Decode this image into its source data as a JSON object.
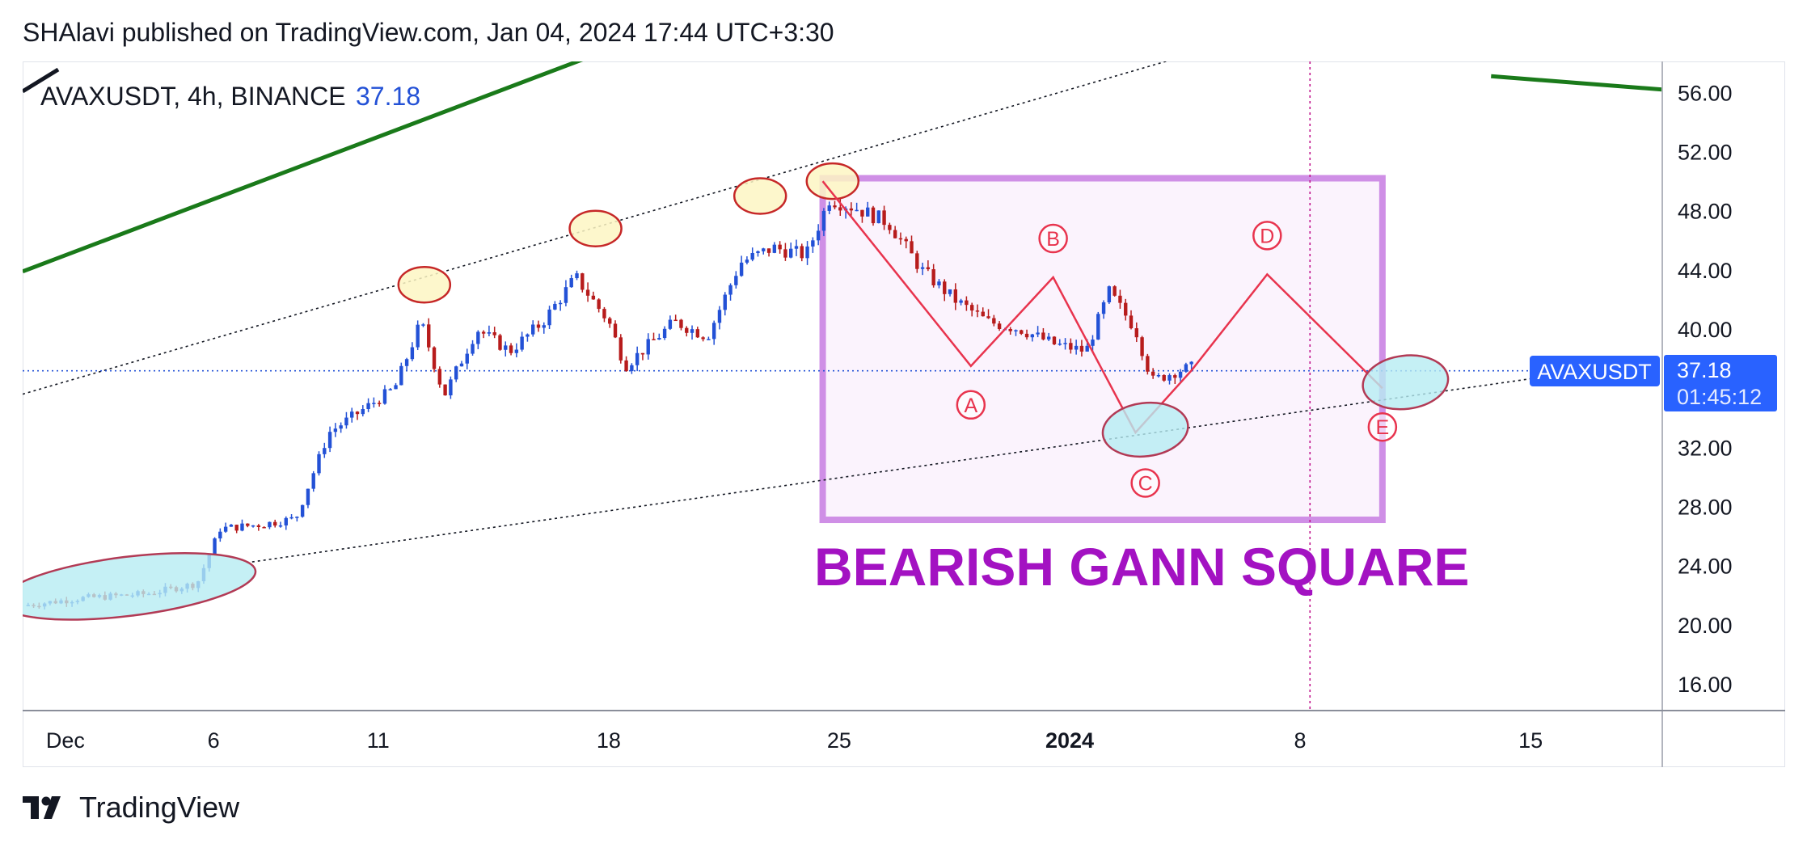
{
  "header": {
    "published": "SHAlavi published on TradingView.com, Jan 04, 2024 17:44 UTC+3:30"
  },
  "legend": {
    "symbol_text": "AVAXUSDT, 4h, BINANCE",
    "last_price": "37.18"
  },
  "price_tag": {
    "symbol": "AVAXUSDT",
    "price": "37.18",
    "countdown": "01:45:12",
    "color": "#2962ff"
  },
  "annotation": {
    "title": "BEARISH GANN SQUARE",
    "color": "#a312c2",
    "wave_labels": [
      "A",
      "B",
      "C",
      "D",
      "E"
    ]
  },
  "footer": {
    "brand": "TradingView"
  },
  "colors": {
    "bull": "#2351d6",
    "bear": "#b71c1c",
    "trend_line": "#1a7a1a",
    "box_border": "#cf8fe6",
    "box_fill": "#fbf3fd",
    "wave_line": "#e8344e",
    "top_marker": "#fdf6c3",
    "zone_marker": "#b7ecf2"
  },
  "chart_data": {
    "type": "candlestick",
    "symbol": "AVAXUSDT",
    "timeframe": "4h",
    "exchange": "BINANCE",
    "y_ticks": [
      56,
      52,
      48,
      44,
      40,
      32,
      28,
      24,
      20,
      16
    ],
    "y_tick_labels": [
      "56.00",
      "52.00",
      "48.00",
      "44.00",
      "40.00",
      "32.00",
      "28.00",
      "24.00",
      "20.00",
      "16.00"
    ],
    "ylim": [
      14.2,
      58.1
    ],
    "x_range_days": [
      0.2,
      50.0
    ],
    "x_ticks": [
      {
        "label": "Dec",
        "day": 1.5,
        "bold": false
      },
      {
        "label": "6",
        "day": 6,
        "bold": false
      },
      {
        "label": "11",
        "day": 11,
        "bold": false
      },
      {
        "label": "18",
        "day": 18,
        "bold": false
      },
      {
        "label": "25",
        "day": 25,
        "bold": false
      },
      {
        "label": "2024",
        "day": 32,
        "bold": true
      },
      {
        "label": "8",
        "day": 39,
        "bold": false
      },
      {
        "label": "15",
        "day": 46,
        "bold": false
      }
    ],
    "current_price": 37.18,
    "price_path": [
      [
        0.2,
        21.3
      ],
      [
        2,
        21.8
      ],
      [
        4,
        22.1
      ],
      [
        5.5,
        22.8
      ],
      [
        6.2,
        26.5
      ],
      [
        7.5,
        26.8
      ],
      [
        8.5,
        27.2
      ],
      [
        9.5,
        33.0
      ],
      [
        10.5,
        34.5
      ],
      [
        11.5,
        36.0
      ],
      [
        12.3,
        40.5
      ],
      [
        13,
        35.5
      ],
      [
        14,
        40.0
      ],
      [
        15,
        38.5
      ],
      [
        16,
        40.5
      ],
      [
        17,
        43.5
      ],
      [
        18,
        40.5
      ],
      [
        18.5,
        37.5
      ],
      [
        20,
        40.5
      ],
      [
        21,
        39.5
      ],
      [
        22,
        44.5
      ],
      [
        23,
        45.5
      ],
      [
        24,
        45.0
      ],
      [
        24.7,
        48.8
      ],
      [
        25.5,
        48.2
      ],
      [
        26.5,
        47.2
      ],
      [
        27.5,
        44.0
      ],
      [
        28.5,
        42.0
      ],
      [
        29.5,
        40.5
      ],
      [
        30.5,
        40.0
      ],
      [
        31.5,
        39.0
      ],
      [
        32.5,
        38.5
      ],
      [
        33.2,
        42.5
      ],
      [
        34,
        40.0
      ],
      [
        34.5,
        36.5
      ],
      [
        35.3,
        37.2
      ],
      [
        35.7,
        37.4
      ]
    ],
    "green_trend_line": {
      "points": [
        [
          0.2,
          43.9
        ],
        [
          18,
          58.9
        ]
      ],
      "second_segment": [
        [
          44.8,
          57.1
        ],
        [
          50,
          56.2
        ]
      ]
    },
    "upper_channel": [
      [
        0.2,
        35.6
      ],
      [
        36,
        58.8
      ]
    ],
    "lower_channel": [
      [
        7,
        24.2
      ],
      [
        46.5,
        36.8
      ]
    ],
    "box": {
      "x0": 24.5,
      "x1": 41.5,
      "y_top": 50.2,
      "y_bottom": 27.1
    },
    "wave_path": [
      {
        "label": "",
        "day": 24.5,
        "price": 50.0
      },
      {
        "label": "A",
        "day": 29,
        "price": 37.5
      },
      {
        "label": "B",
        "day": 31.5,
        "price": 43.5
      },
      {
        "label": "C",
        "day": 34,
        "price": 33.0
      },
      {
        "label": "",
        "day": 35.7,
        "price": 37.2
      },
      {
        "label": "D",
        "day": 38.0,
        "price": 43.7
      },
      {
        "label": "E",
        "day": 41.5,
        "price": 36.0
      }
    ],
    "vertical_marker_day": 39.3,
    "top_markers": [
      [
        12.4,
        43.0
      ],
      [
        17.6,
        46.8
      ],
      [
        22.6,
        49.0
      ],
      [
        24.8,
        50.0
      ]
    ],
    "zones": [
      {
        "day": 3.4,
        "price": 22.6,
        "rx_days": 3.9,
        "ry_price": 2.0
      },
      {
        "day": 34.3,
        "price": 33.2,
        "rx_days": 1.3,
        "ry_price": 1.8
      },
      {
        "day": 42.2,
        "price": 36.4,
        "rx_days": 1.3,
        "ry_price": 1.8
      }
    ]
  }
}
